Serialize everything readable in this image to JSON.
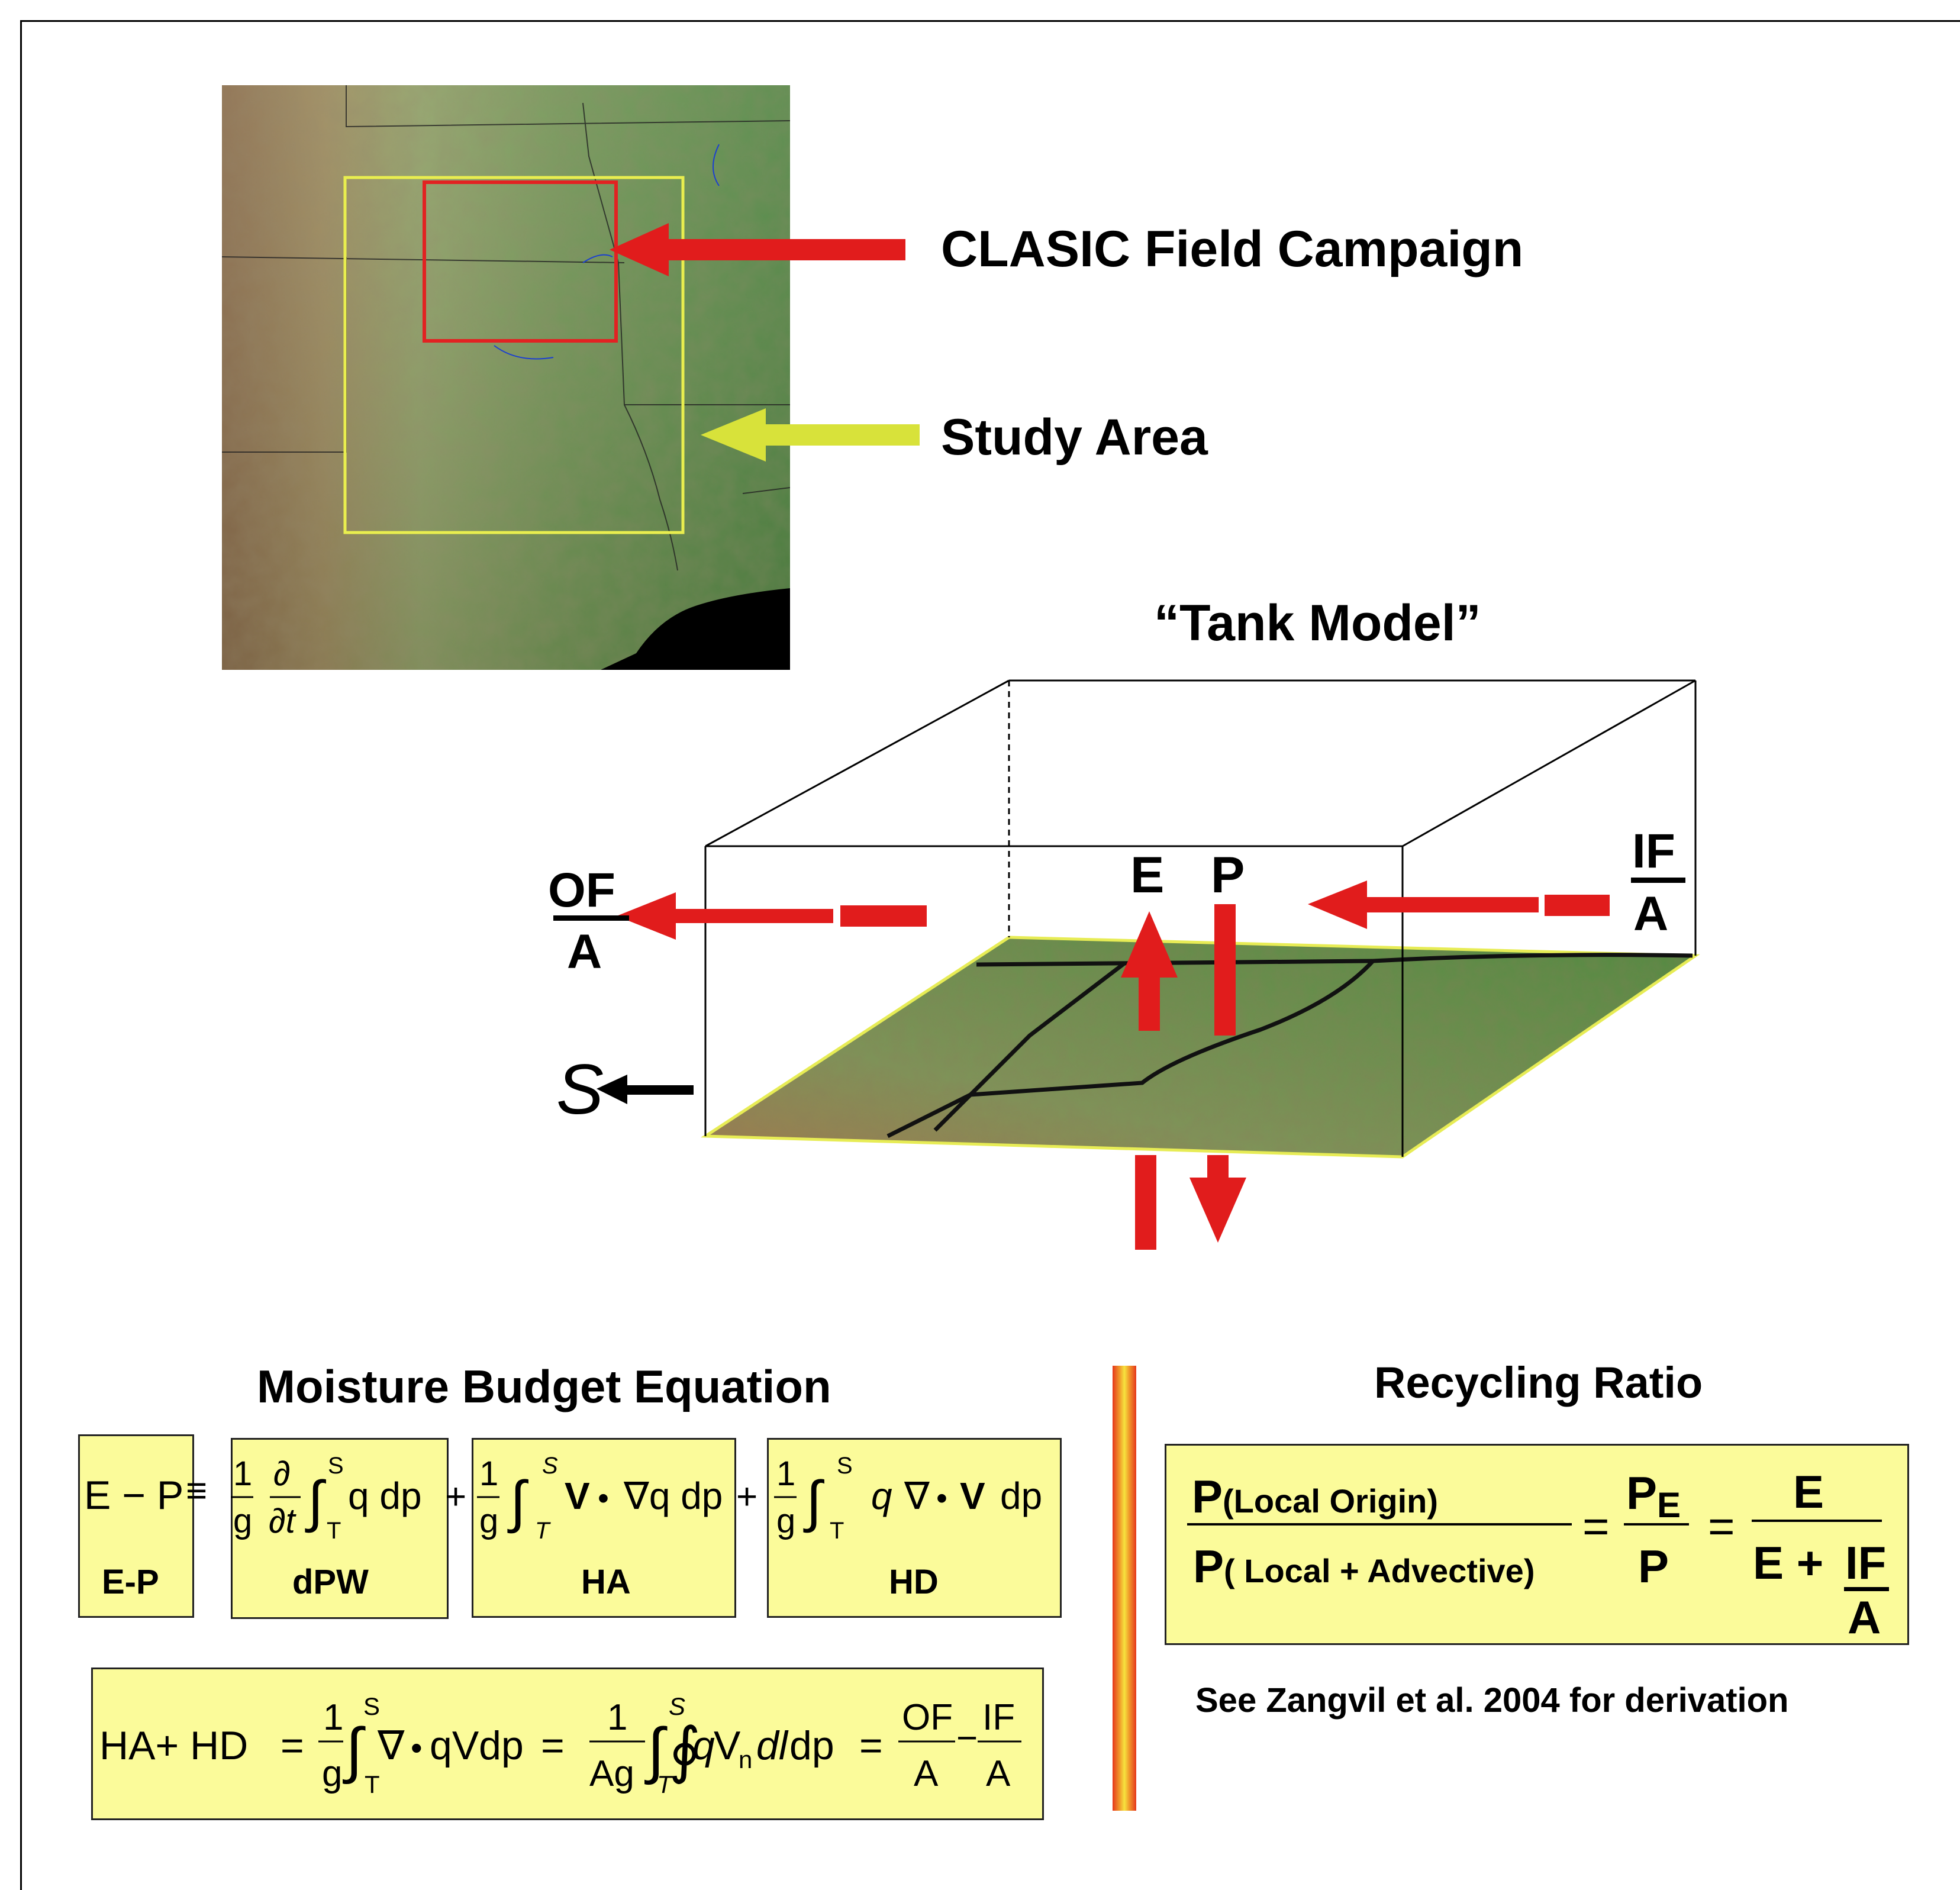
{
  "map": {
    "campaign_label": "CLASIC Field Campaign",
    "study_label": "Study Area"
  },
  "tank": {
    "title": "“Tank Model”",
    "of_num": "OF",
    "of_den": "A",
    "if_num": "IF",
    "if_den": "A",
    "e_label": "E",
    "p_label": "P",
    "s_label": "S"
  },
  "moisture": {
    "title": "Moisture Budget Equation",
    "terms": [
      {
        "label": "E-P"
      },
      {
        "label": "dPW"
      },
      {
        "label": "HA"
      },
      {
        "label": "HD"
      }
    ]
  },
  "recycling": {
    "title": "Recycling Ratio",
    "num_main": "P",
    "num_sub": "(Local Origin)",
    "den_main": "P",
    "den_sub": "( Local + Advective)",
    "pe_main": "P",
    "pe_sub": "E",
    "p_den": "P",
    "e_num": "E",
    "e_den": "E + ",
    "if_num": "IF",
    "if_den": "A",
    "footnote": "See Zangvil et al. 2004 for derivation"
  },
  "colors": {
    "arrow_red": "#e11c1c",
    "arrow_yellow": "#d8e23a",
    "box_yellow": "#fbfb9a",
    "study_box": "#e9ee4f",
    "campaign_box": "#e22222"
  }
}
